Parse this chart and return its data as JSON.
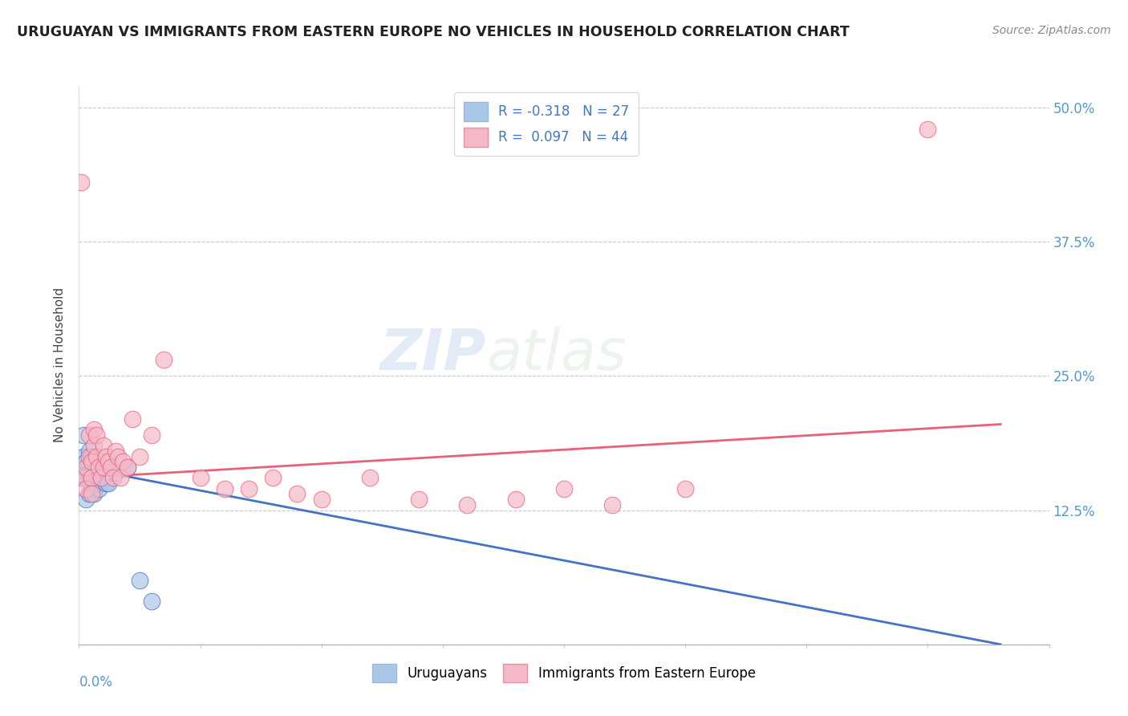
{
  "title": "URUGUAYAN VS IMMIGRANTS FROM EASTERN EUROPE NO VEHICLES IN HOUSEHOLD CORRELATION CHART",
  "source": "Source: ZipAtlas.com",
  "ylabel": "No Vehicles in Household",
  "yticks": [
    0.0,
    0.125,
    0.25,
    0.375,
    0.5
  ],
  "ytick_labels": [
    "",
    "12.5%",
    "25.0%",
    "37.5%",
    "50.0%"
  ],
  "xlim": [
    0.0,
    0.4
  ],
  "ylim": [
    0.0,
    0.52
  ],
  "r_uruguayan": -0.318,
  "n_uruguayan": 27,
  "r_eastern": 0.097,
  "n_eastern": 44,
  "color_uruguayan": "#aac7e8",
  "color_eastern": "#f5b8c8",
  "line_color_uruguayan": "#4472c4",
  "line_color_eastern": "#e8607a",
  "watermark_zip": "ZIP",
  "watermark_atlas": "atlas",
  "uruguayan_x": [
    0.001,
    0.002,
    0.002,
    0.003,
    0.003,
    0.003,
    0.004,
    0.004,
    0.004,
    0.005,
    0.005,
    0.005,
    0.006,
    0.006,
    0.006,
    0.007,
    0.007,
    0.008,
    0.008,
    0.009,
    0.01,
    0.011,
    0.012,
    0.015,
    0.02,
    0.025,
    0.03
  ],
  "uruguayan_y": [
    0.155,
    0.195,
    0.175,
    0.17,
    0.155,
    0.135,
    0.18,
    0.16,
    0.14,
    0.175,
    0.16,
    0.145,
    0.17,
    0.155,
    0.14,
    0.165,
    0.15,
    0.16,
    0.145,
    0.155,
    0.155,
    0.15,
    0.15,
    0.16,
    0.165,
    0.06,
    0.04
  ],
  "eastern_x": [
    0.001,
    0.002,
    0.003,
    0.003,
    0.004,
    0.004,
    0.005,
    0.005,
    0.005,
    0.006,
    0.006,
    0.007,
    0.007,
    0.008,
    0.009,
    0.01,
    0.01,
    0.011,
    0.012,
    0.013,
    0.014,
    0.015,
    0.016,
    0.017,
    0.018,
    0.02,
    0.022,
    0.025,
    0.03,
    0.035,
    0.05,
    0.06,
    0.07,
    0.08,
    0.09,
    0.1,
    0.12,
    0.14,
    0.16,
    0.18,
    0.2,
    0.22,
    0.25,
    0.35
  ],
  "eastern_y": [
    0.43,
    0.155,
    0.165,
    0.145,
    0.195,
    0.175,
    0.17,
    0.155,
    0.14,
    0.2,
    0.185,
    0.195,
    0.175,
    0.165,
    0.155,
    0.185,
    0.165,
    0.175,
    0.17,
    0.165,
    0.155,
    0.18,
    0.175,
    0.155,
    0.17,
    0.165,
    0.21,
    0.175,
    0.195,
    0.265,
    0.155,
    0.145,
    0.145,
    0.155,
    0.14,
    0.135,
    0.155,
    0.135,
    0.13,
    0.135,
    0.145,
    0.13,
    0.145,
    0.48
  ]
}
